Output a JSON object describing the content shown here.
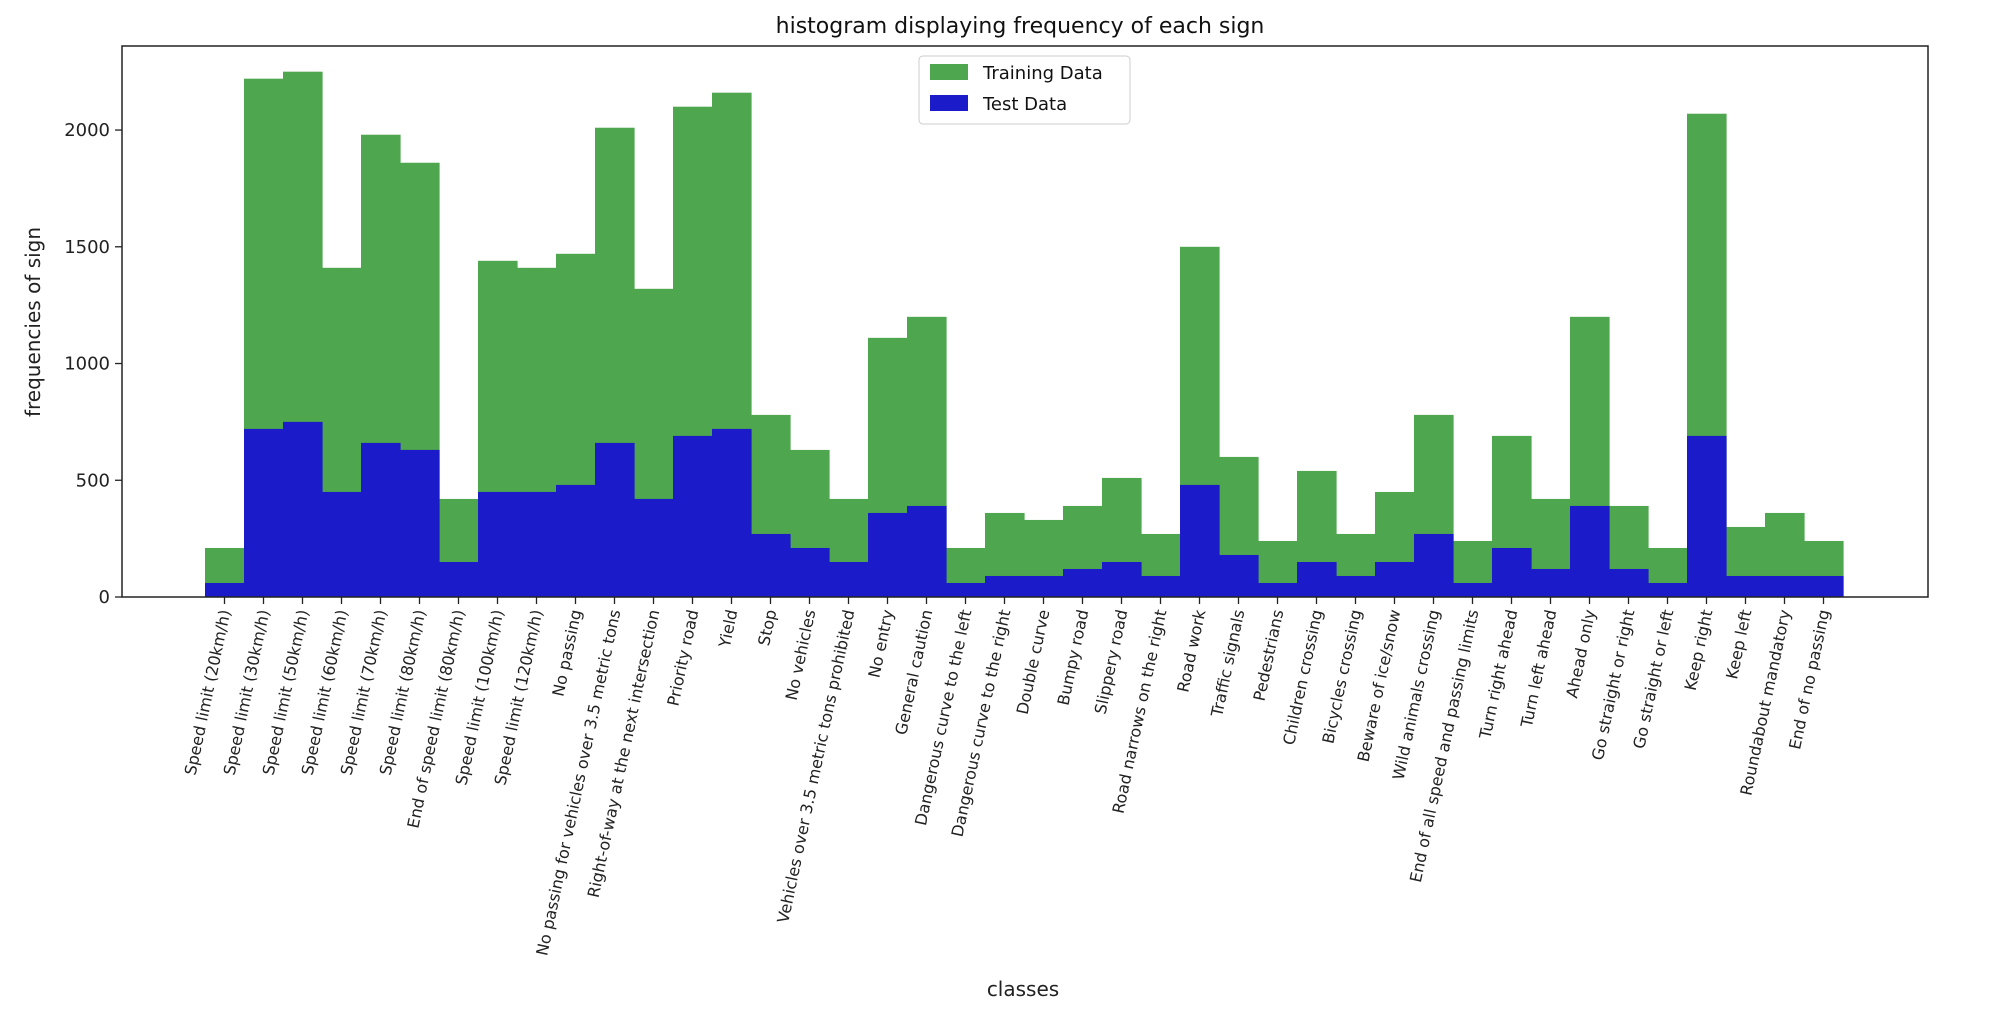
{
  "chart_data": {
    "type": "bar",
    "title": "histogram displaying frequency of each sign",
    "xlabel": "classes",
    "ylabel": "frequencies of sign",
    "ylim": [
      0,
      2360
    ],
    "yticks": [
      0,
      500,
      1000,
      1500,
      2000
    ],
    "grid": false,
    "legend_position": "top-center",
    "categories": [
      "Speed limit (20km/h)",
      "Speed limit (30km/h)",
      "Speed limit (50km/h)",
      "Speed limit (60km/h)",
      "Speed limit (70km/h)",
      "Speed limit (80km/h)",
      "End of speed limit (80km/h)",
      "Speed limit (100km/h)",
      "Speed limit (120km/h)",
      "No passing",
      "No passing for vehicles over 3.5 metric tons",
      "Right-of-way at the next intersection",
      "Priority road",
      "Yield",
      "Stop",
      "No vehicles",
      "Vehicles over 3.5 metric tons prohibited",
      "No entry",
      "General caution",
      "Dangerous curve to the left",
      "Dangerous curve to the right",
      "Double curve",
      "Bumpy road",
      "Slippery road",
      "Road narrows on the right",
      "Road work",
      "Traffic signals",
      "Pedestrians",
      "Children crossing",
      "Bicycles crossing",
      "Beware of ice/snow",
      "Wild animals crossing",
      "End of all speed and passing limits",
      "Turn right ahead",
      "Turn left ahead",
      "Ahead only",
      "Go straight or right",
      "Go straight or left",
      "Keep right",
      "Keep left",
      "Roundabout mandatory",
      "End of no passing"
    ],
    "series": [
      {
        "name": "Training Data",
        "color": "#4ea64e",
        "values": [
          210,
          2220,
          2250,
          1410,
          1980,
          1860,
          420,
          1440,
          1410,
          1470,
          2010,
          1320,
          2100,
          2160,
          780,
          630,
          420,
          1110,
          1200,
          210,
          360,
          330,
          390,
          510,
          270,
          1500,
          600,
          240,
          540,
          270,
          450,
          780,
          240,
          690,
          420,
          1200,
          390,
          210,
          2070,
          300,
          360,
          240
        ]
      },
      {
        "name": "Test Data",
        "color": "#1b1bc9",
        "values": [
          60,
          720,
          750,
          450,
          660,
          630,
          150,
          450,
          450,
          480,
          660,
          420,
          690,
          720,
          270,
          210,
          150,
          360,
          390,
          60,
          90,
          90,
          120,
          150,
          90,
          480,
          180,
          60,
          150,
          90,
          150,
          270,
          60,
          210,
          120,
          390,
          120,
          60,
          690,
          90,
          90,
          90
        ]
      }
    ]
  }
}
